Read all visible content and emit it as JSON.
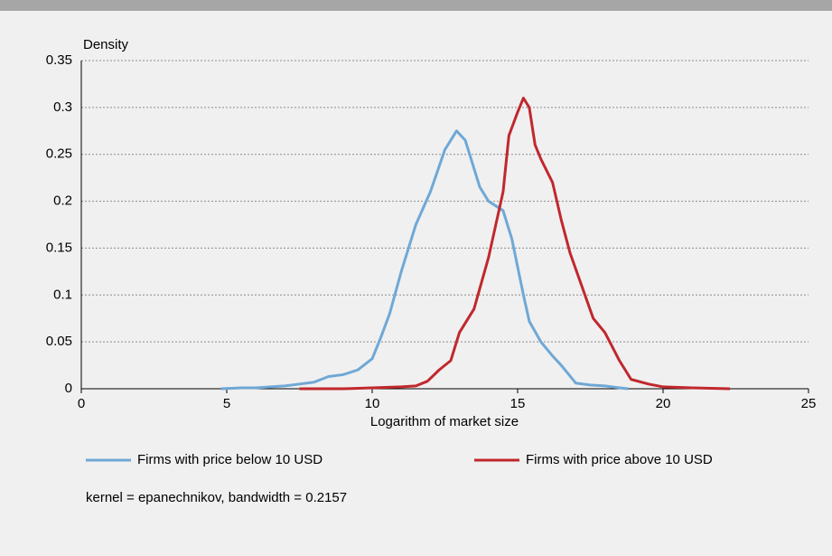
{
  "chart_data": {
    "type": "line",
    "ylabel": "Density",
    "xlabel": "Logarithm of market size",
    "xlim": [
      0,
      25
    ],
    "xticks": [
      0,
      5,
      10,
      15,
      20,
      25
    ],
    "ylim": [
      0,
      0.35
    ],
    "yticks": [
      0,
      0.05,
      0.1,
      0.15,
      0.2,
      0.25,
      0.3,
      0.35
    ],
    "grid": true,
    "legend": "bottom",
    "note": "kernel = epanechnikov, bandwidth = 0.2157",
    "series": [
      {
        "name": "Firms with price below 10 USD",
        "color": "#6fa8d6",
        "x": [
          4.8,
          5.5,
          6,
          7,
          7.5,
          8,
          8.5,
          9,
          9.5,
          10,
          10.3,
          10.6,
          11,
          11.5,
          12,
          12.5,
          12.9,
          13.2,
          13.7,
          14,
          14.5,
          14.8,
          15.2,
          15.4,
          15.8,
          16.2,
          16.5,
          17,
          17.5,
          18,
          18.5,
          18.8
        ],
        "values": [
          0,
          0.001,
          0.001,
          0.003,
          0.005,
          0.007,
          0.013,
          0.015,
          0.02,
          0.032,
          0.055,
          0.08,
          0.125,
          0.175,
          0.21,
          0.255,
          0.275,
          0.265,
          0.215,
          0.2,
          0.19,
          0.16,
          0.1,
          0.072,
          0.05,
          0.035,
          0.025,
          0.006,
          0.004,
          0.003,
          0.001,
          0
        ]
      },
      {
        "name": "Firms with price above 10 USD",
        "color": "#c0282d",
        "x": [
          7.5,
          9,
          10,
          11,
          11.5,
          11.9,
          12.3,
          12.7,
          13,
          13.5,
          14,
          14.5,
          14.7,
          15,
          15.2,
          15.4,
          15.6,
          15.8,
          16.2,
          16.5,
          16.8,
          17.2,
          17.6,
          18,
          18.5,
          18.9,
          19.5,
          20,
          21,
          22.3
        ],
        "values": [
          0,
          0,
          0.001,
          0.002,
          0.003,
          0.008,
          0.02,
          0.03,
          0.06,
          0.085,
          0.14,
          0.21,
          0.27,
          0.295,
          0.31,
          0.3,
          0.26,
          0.245,
          0.22,
          0.18,
          0.145,
          0.11,
          0.075,
          0.06,
          0.03,
          0.01,
          0.005,
          0.002,
          0.001,
          0
        ]
      }
    ]
  }
}
